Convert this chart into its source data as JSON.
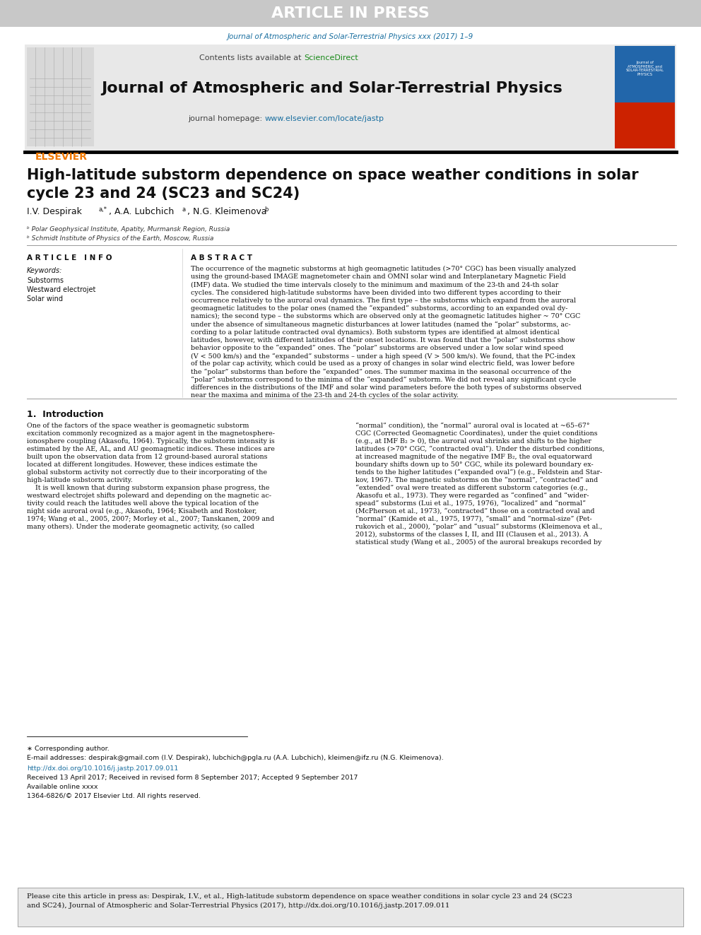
{
  "article_in_press_text": "ARTICLE IN PRESS",
  "article_in_press_bg": "#c8c8c8",
  "article_in_press_color": "#ffffff",
  "journal_link_text": "Journal of Atmospheric and Solar-Terrestrial Physics xxx (2017) 1–9",
  "journal_link_color": "#1a6fa0",
  "header_bg": "#e8e8e8",
  "header_journal_name": "Journal of Atmospheric and Solar-Terrestrial Physics",
  "header_contents_text": "Contents lists available at",
  "header_sciencedirect_text": "ScienceDirect",
  "header_sciencedirect_color": "#1a8a1a",
  "header_homepage_text": "journal homepage:",
  "header_homepage_url": "www.elsevier.com/locate/jastp",
  "header_url_color": "#1a6fa0",
  "elsevier_color": "#f07800",
  "title": "High-latitude substorm dependence on space weather conditions in solar\ncycle 23 and 24 (SC23 and SC24)",
  "affil_a": "ᵇ Polar Geophysical Institute, Apatity, Murmansk Region, Russia",
  "affil_b": "ᵇ Schmidt Institute of Physics of the Earth, Moscow, Russia",
  "article_info_header": "A R T I C L E   I N F O",
  "keywords_header": "Keywords:",
  "keywords": [
    "Substorms",
    "Westward electrojet",
    "Solar wind"
  ],
  "abstract_header": "A B S T R A C T",
  "abstract_text": "The occurrence of the magnetic substorms at high geomagnetic latitudes (>70° CGC) has been visually analyzed\nusing the ground-based IMAGE magnetometer chain and OMNI solar wind and Interplanetary Magnetic Field\n(IMF) data. We studied the time intervals closely to the minimum and maximum of the 23-th and 24-th solar\ncycles. The considered high-latitude substorms have been divided into two different types according to their\noccurrence relatively to the auroral oval dynamics. The first type – the substorms which expand from the auroral\ngeomagnetic latitudes to the polar ones (named the “expanded” substorms, according to an expanded oval dy-\nnamics); the second type – the substorms which are observed only at the geomagnetic latitudes higher ~ 70° CGC\nunder the absence of simultaneous magnetic disturbances at lower latitudes (named the “polar” substorms, ac-\ncording to a polar latitude contracted oval dynamics). Both substorm types are identified at almost identical\nlatitudes, however, with different latitudes of their onset locations. It was found that the “polar” substorms show\nbehavior opposite to the “expanded” ones. The “polar” substorms are observed under a low solar wind speed\n(V < 500 km/s) and the “expanded” substorms – under a high speed (V > 500 km/s). We found, that the PC-index\nof the polar cap activity, which could be used as a proxy of changes in solar wind electric field, was lower before\nthe “polar” substorms than before the “expanded” ones. The summer maxima in the seasonal occurrence of the\n“polar” substorms correspond to the minima of the “expanded” substorm. We did not reveal any significant cycle\ndifferences in the distributions of the IMF and solar wind parameters before the both types of substorms observed\nnear the maxima and minima of the 23-th and 24-th cycles of the solar activity.",
  "section1_header": "1.  Introduction",
  "intro_col1_lines": [
    "One of the factors of the space weather is geomagnetic substorm",
    "excitation commonly recognized as a major agent in the magnetosphere-",
    "ionosphere coupling (Akasofu, 1964). Typically, the substorm intensity is",
    "estimated by the AE, AL, and AU geomagnetic indices. These indices are",
    "built upon the observation data from 12 ground-based auroral stations",
    "located at different longitudes. However, these indices estimate the",
    "global substorm activity not correctly due to their incorporating of the",
    "high-latitude substorm activity.",
    "    It is well known that during substorm expansion phase progress, the",
    "westward electrojet shifts poleward and depending on the magnetic ac-",
    "tivity could reach the latitudes well above the typical location of the",
    "night side auroral oval (e.g., Akasofu, 1964; Kisabeth and Rostoker,",
    "1974; Wang et al., 2005, 2007; Morley et al., 2007; Tanskanen, 2009 and",
    "many others). Under the moderate geomagnetic activity, (so called"
  ],
  "intro_col2_lines": [
    "“normal” condition), the “normal” auroral oval is located at ~65–67°",
    "CGC (Corrected Geomagnetic Coordinates), under the quiet conditions",
    "(e.g., at IMF B₂ > 0), the auroral oval shrinks and shifts to the higher",
    "latitudes (>70° CGC, “contracted oval”). Under the disturbed conditions,",
    "at increased magnitude of the negative IMF B₂, the oval equatorward",
    "boundary shifts down up to 50° CGC, while its poleward boundary ex-",
    "tends to the higher latitudes (“expanded oval”) (e.g., Feldstein and Star-",
    "kov, 1967). The magnetic substorms on the “normal”, “contracted” and",
    "“extended” oval were treated as different substorm categories (e.g.,",
    "Akasofu et al., 1973). They were regarded as “confined” and “wider-",
    "spead” substorms (Lui et al., 1975, 1976), “localized” and “normal”",
    "(McPherson et al., 1973), “contracted” those on a contracted oval and",
    "“normal” (Kamide et al., 1975, 1977), “small” and “normal-size” (Pet-",
    "rukovich et al., 2000), “polar” and “usual” substorms (Kleimenova et al.,",
    "2012), substorms of the classes I, II, and III (Clausen et al., 2013). A",
    "statistical study (Wang et al., 2005) of the auroral breakups recorded by"
  ],
  "footnote_star": "∗ Corresponding author.",
  "footnote_email": "E-mail addresses: despirak@gmail.com (I.V. Despirak), lubchich@pgla.ru (A.A. Lubchich), kleimen@ifz.ru (N.G. Kleimenova).",
  "doi_text": "http://dx.doi.org/10.1016/j.jastp.2017.09.011",
  "received_text": "Received 13 April 2017; Received in revised form 8 September 2017; Accepted 9 September 2017",
  "online_text": "Available online xxxx",
  "issn_text": "1364-6826/© 2017 Elsevier Ltd. All rights reserved.",
  "cite_box_text": "Please cite this article in press as: Despirak, I.V., et al., High-latitude substorm dependence on space weather conditions in solar cycle 23 and 24 (SC23\nand SC24), Journal of Atmospheric and Solar-Terrestrial Physics (2017), http://dx.doi.org/10.1016/j.jastp.2017.09.011",
  "cite_box_bg": "#e8e8e8",
  "link_color": "#1a6fa0",
  "bg_color": "#ffffff"
}
